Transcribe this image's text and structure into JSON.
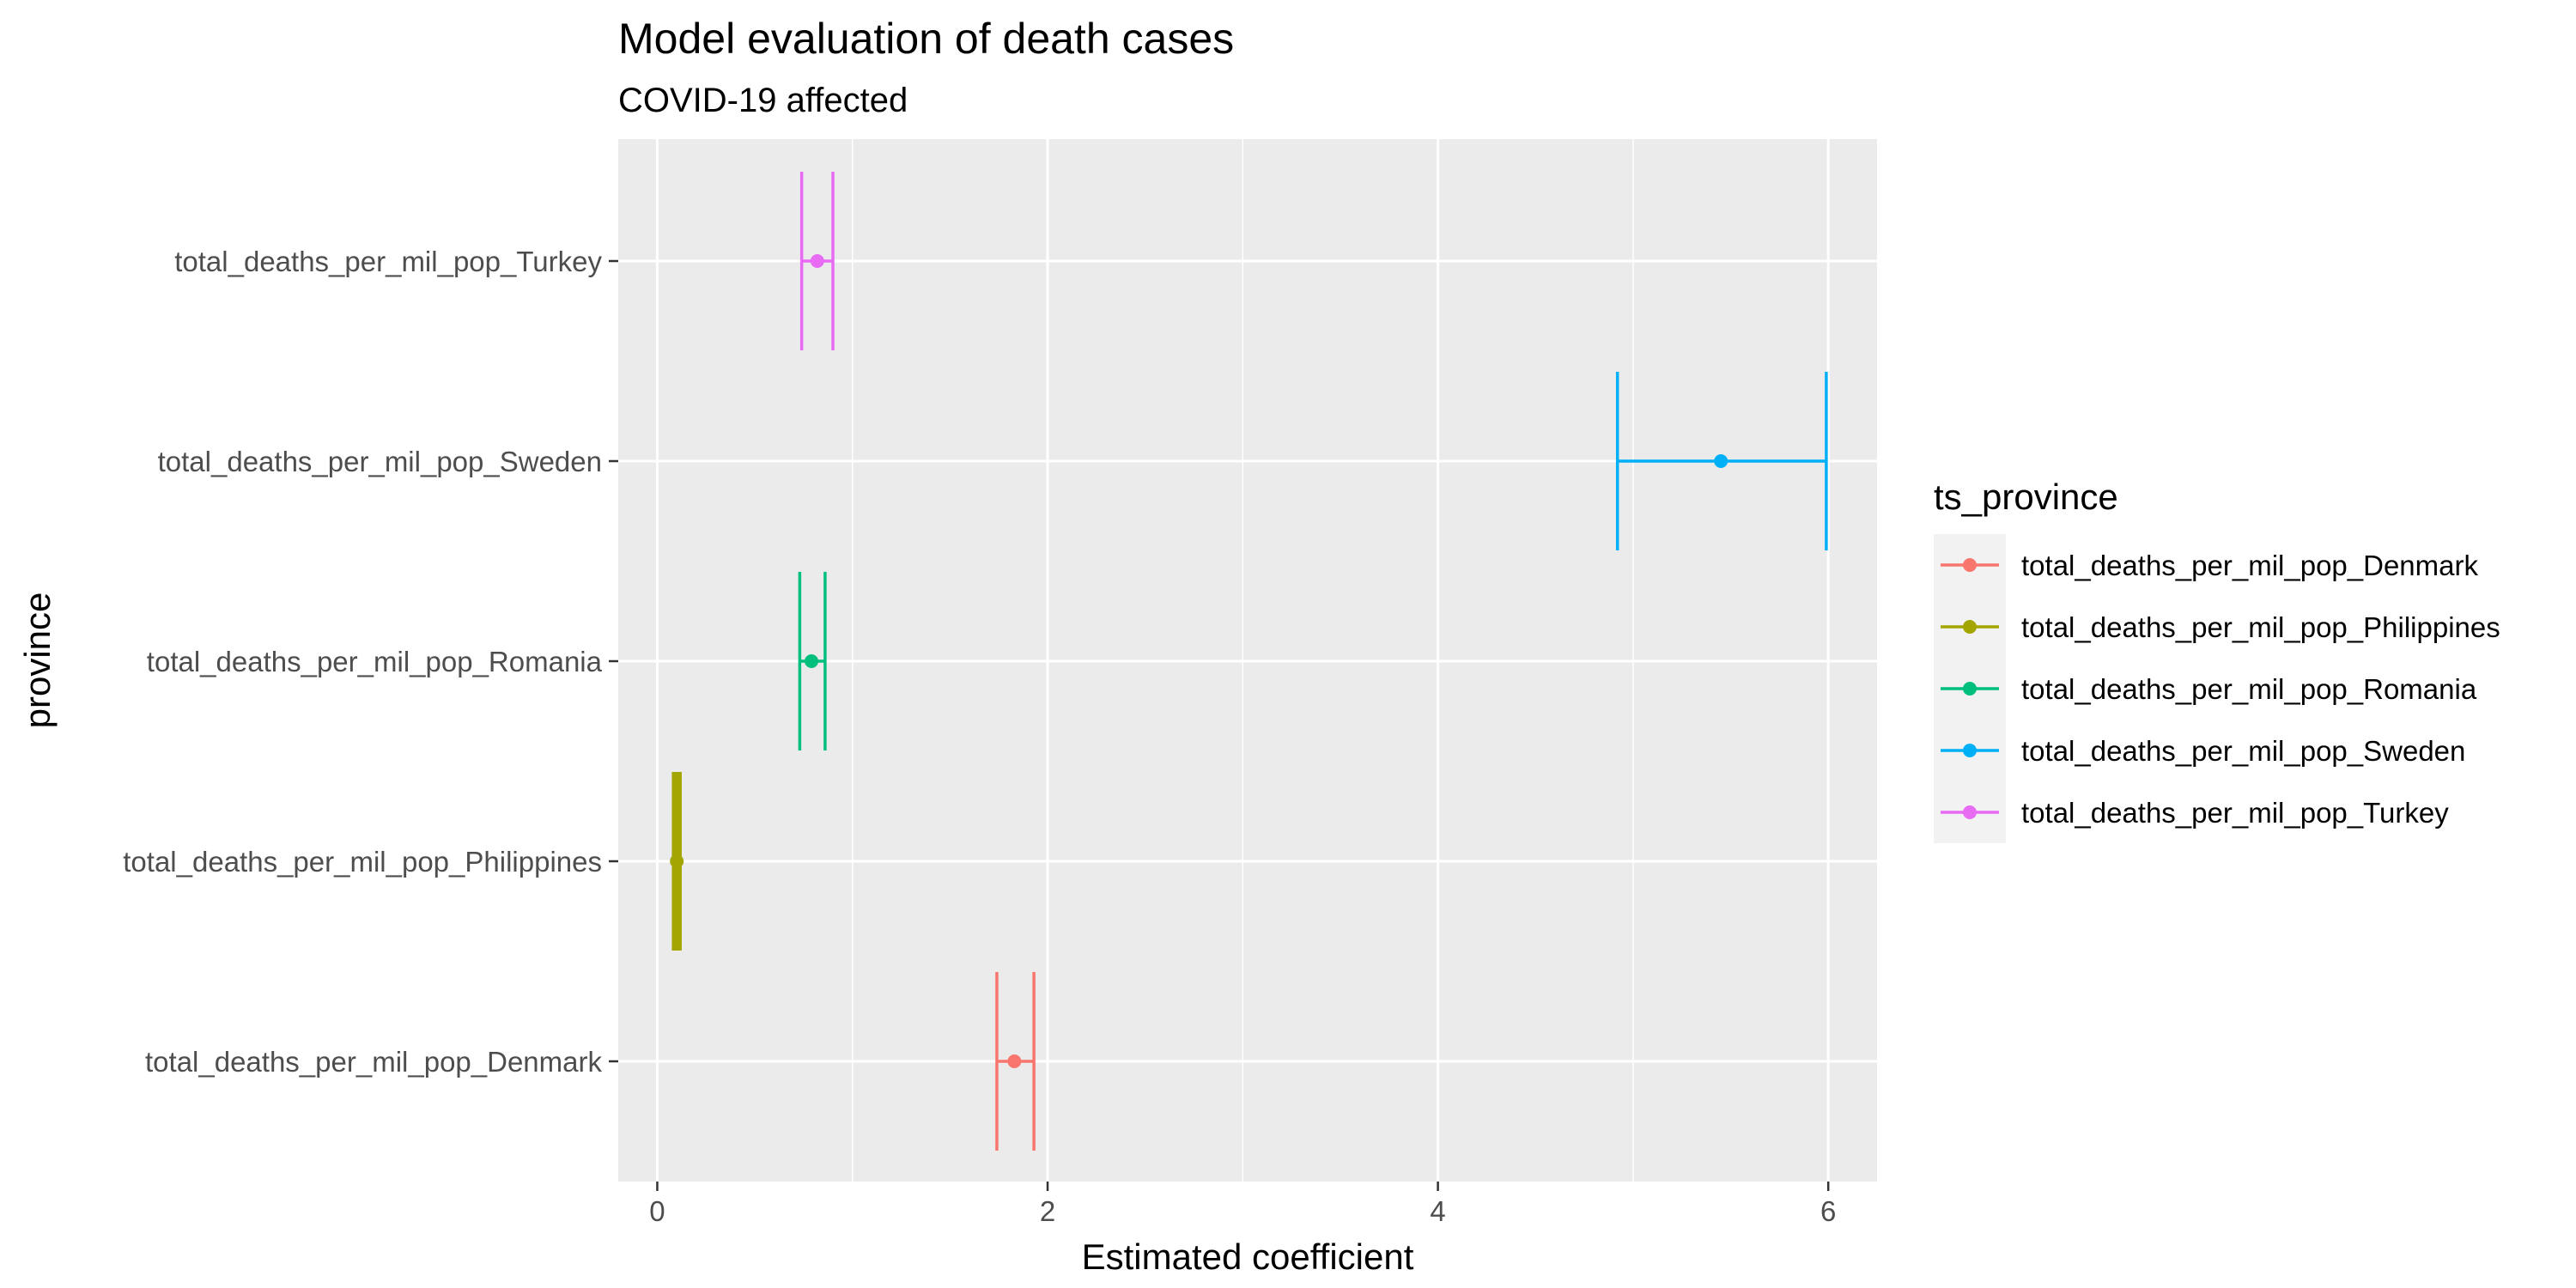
{
  "chart_data": {
    "type": "scatter",
    "title": "Model evaluation of death cases",
    "subtitle": "COVID-19 affected",
    "xlabel": "Estimated coefficient",
    "ylabel": "province",
    "xlim": [
      -0.2,
      6.25
    ],
    "x_ticks": [
      0,
      2,
      4,
      6
    ],
    "x_tick_labels": [
      "0",
      "2",
      "4",
      "6"
    ],
    "grid": true,
    "legend_title": "ts_province",
    "legend_position": "right",
    "categories": [
      "total_deaths_per_mil_pop_Denmark",
      "total_deaths_per_mil_pop_Philippines",
      "total_deaths_per_mil_pop_Romania",
      "total_deaths_per_mil_pop_Sweden",
      "total_deaths_per_mil_pop_Turkey"
    ],
    "series": [
      {
        "name": "total_deaths_per_mil_pop_Denmark",
        "estimate": 1.83,
        "low": 1.74,
        "high": 1.93,
        "color": "#F8766D"
      },
      {
        "name": "total_deaths_per_mil_pop_Philippines",
        "estimate": 0.1,
        "low": 0.09,
        "high": 0.11,
        "color": "#A3A500"
      },
      {
        "name": "total_deaths_per_mil_pop_Romania",
        "estimate": 0.79,
        "low": 0.73,
        "high": 0.86,
        "color": "#00BF7D"
      },
      {
        "name": "total_deaths_per_mil_pop_Sweden",
        "estimate": 5.45,
        "low": 4.92,
        "high": 5.99,
        "color": "#00B0F6"
      },
      {
        "name": "total_deaths_per_mil_pop_Turkey",
        "estimate": 0.82,
        "low": 0.74,
        "high": 0.9,
        "color": "#E76BF3"
      }
    ]
  }
}
